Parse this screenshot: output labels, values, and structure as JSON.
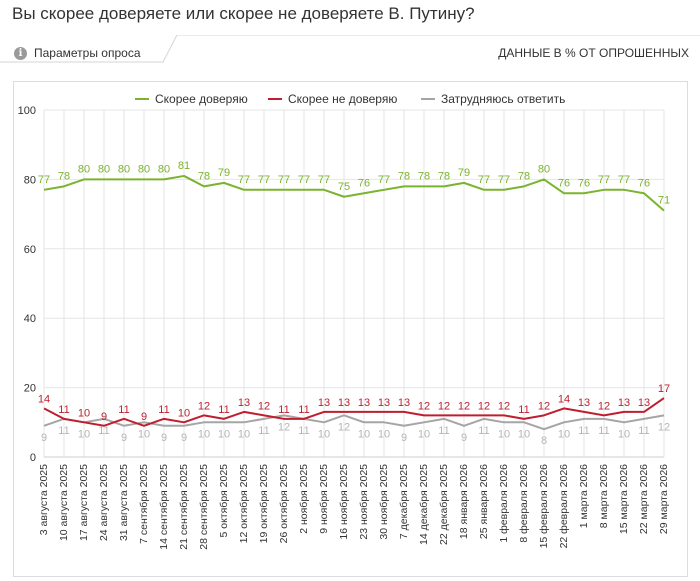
{
  "page": {
    "title": "Вы скорее доверяете или скорее не доверяете В. Путину?",
    "params_label": "Параметры опроса",
    "units_label": "ДАННЫЕ В % ОТ ОПРОШЕННЫХ",
    "info_icon": "info-icon"
  },
  "colors": {
    "trust": "#7ab32e",
    "distrust": "#bf1e2e",
    "undecided": "#a5a5a5",
    "grid": "#e6e6e6"
  },
  "chart_data": {
    "type": "line",
    "title": "Вы скорее доверяете или скорее не доверяете В. Путину?",
    "xlabel": "",
    "ylabel": "",
    "ylim": [
      0,
      100
    ],
    "yticks": [
      0,
      20,
      40,
      60,
      80,
      100
    ],
    "grid": true,
    "legend_position": "top-center",
    "categories": [
      "3 августа 2025",
      "10 августа 2025",
      "17 августа 2025",
      "24 августа 2025",
      "31 августа 2025",
      "7 сентября 2025",
      "14 сентября 2025",
      "21 сентября 2025",
      "28 сентября 2025",
      "5 октября 2025",
      "12 октября 2025",
      "19 октября 2025",
      "26 октября 2025",
      "2 ноября 2025",
      "9 ноября 2025",
      "16 ноября 2025",
      "23 ноября 2025",
      "30 ноября 2025",
      "7 декабря 2025",
      "14 декабря 2025",
      "22 декабря 2025",
      "18 января 2026",
      "25 января 2026",
      "1 февраля 2026",
      "8 февраля 2026",
      "15 февраля 2026",
      "22 февраля 2026",
      "1 марта 2026",
      "8 марта 2026",
      "15 марта 2026",
      "22 марта 2026",
      "29 марта 2026"
    ],
    "tick_labels": [
      "3 августа 2025",
      "10 августа 2025",
      "17 августа 2025",
      "24 августа 2025",
      "31 августа 2025",
      "7 сентября 2025",
      "14 сентября 2025",
      "21 сентября 2025",
      "28 сентября 2025",
      "5 октября 2025",
      "12 октября 2025",
      "19 октября 2025",
      "26 октября 2025",
      "2 ноября 2025",
      "9 ноября 2025",
      "16 ноября 2025",
      "23 ноября 2025",
      "30 ноября 2025",
      "7 декабря 2025",
      "14 декабря 2025",
      "22 декабря 2025",
      "18 января 2026",
      "25 января 2026",
      "1 февраля 2026",
      "8 февраля 2026",
      "15 февраля 2026",
      "22 февраля 2026",
      "1 марта 2026",
      "8 марта 2026",
      "15 марта 2026",
      "22 марта 2026",
      "29 марта 2026"
    ],
    "series": [
      {
        "name": "Скорее доверяю",
        "key": "trust",
        "values": [
          77,
          78,
          80,
          80,
          80,
          80,
          80,
          81,
          78,
          79,
          77,
          77,
          77,
          77,
          77,
          75,
          76,
          77,
          78,
          78,
          78,
          79,
          77,
          77,
          78,
          80,
          76,
          76,
          77,
          77,
          76,
          71
        ]
      },
      {
        "name": "Скорее не доверяю",
        "key": "distrust",
        "values": [
          14,
          11,
          10,
          9,
          11,
          9,
          11,
          10,
          12,
          11,
          13,
          12,
          11,
          11,
          13,
          13,
          13,
          13,
          13,
          12,
          12,
          12,
          12,
          12,
          11,
          12,
          14,
          13,
          12,
          13,
          13,
          17
        ]
      },
      {
        "name": "Затрудняюсь ответить",
        "key": "undecided",
        "values": [
          9,
          11,
          10,
          11,
          9,
          10,
          9,
          9,
          10,
          10,
          10,
          11,
          12,
          11,
          10,
          12,
          10,
          10,
          9,
          10,
          11,
          9,
          11,
          10,
          10,
          8,
          10,
          11,
          11,
          10,
          11,
          12
        ]
      }
    ]
  }
}
